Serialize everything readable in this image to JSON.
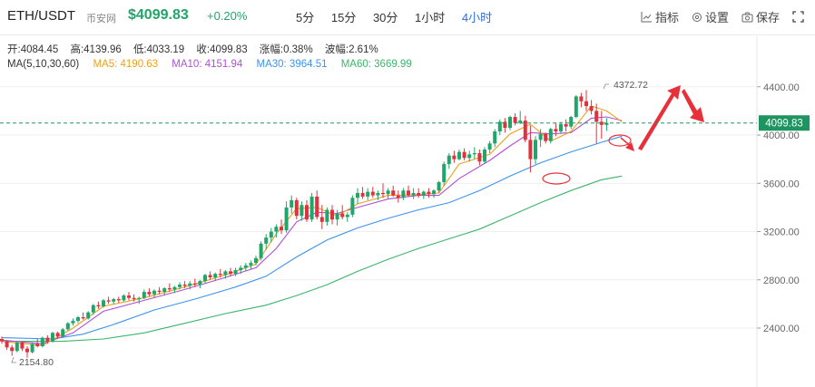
{
  "header": {
    "pair": "ETH/USDT",
    "exchange": "币安网",
    "price": "$4099.83",
    "change": "+0.20%",
    "intervals": [
      "5分",
      "15分",
      "30分",
      "1小时",
      "4小时"
    ],
    "active_interval": "4小时",
    "tools": {
      "indicators": "指标",
      "settings": "设置",
      "save": "保存"
    }
  },
  "ohlc": {
    "open": "开:4084.45",
    "high": "高:4139.96",
    "low": "低:4033.19",
    "close": "收:4099.83",
    "change": "涨幅:0.38%",
    "amplitude": "波幅:2.61%"
  },
  "ma": {
    "label": "MA(5,10,30,60)",
    "ma5": "MA5: 4190.63",
    "ma10": "MA10: 4151.94",
    "ma30": "MA30: 3964.51",
    "ma60": "MA60: 3669.99"
  },
  "colors": {
    "up": "#20a56a",
    "down": "#e0323d",
    "ma5": "#f0a01e",
    "ma10": "#b04fd6",
    "ma30": "#3b93f0",
    "ma60": "#3bb56a",
    "annotation": "#e8303a",
    "price_line": "#1e9560"
  },
  "chart_data": {
    "type": "candlestick",
    "y_ticks": [
      "4400.00",
      "4000.00",
      "3600.00",
      "3200.00",
      "2800.00",
      "2400.00"
    ],
    "ylim": [
      2100,
      4600
    ],
    "current_price": 4099.83,
    "current_price_label": "4099.83",
    "high_label": "4372.72",
    "low_label": "2154.80",
    "candles": [
      [
        2310,
        2330,
        2270,
        2290
      ],
      [
        2290,
        2300,
        2220,
        2240
      ],
      [
        2240,
        2260,
        2170,
        2210
      ],
      [
        2210,
        2290,
        2200,
        2280
      ],
      [
        2280,
        2290,
        2210,
        2230
      ],
      [
        2230,
        2250,
        2155,
        2200
      ],
      [
        2200,
        2280,
        2190,
        2270
      ],
      [
        2270,
        2310,
        2240,
        2250
      ],
      [
        2250,
        2330,
        2240,
        2320
      ],
      [
        2320,
        2340,
        2270,
        2290
      ],
      [
        2290,
        2370,
        2280,
        2360
      ],
      [
        2360,
        2370,
        2310,
        2330
      ],
      [
        2330,
        2400,
        2320,
        2390
      ],
      [
        2390,
        2450,
        2380,
        2440
      ],
      [
        2440,
        2480,
        2420,
        2460
      ],
      [
        2460,
        2500,
        2440,
        2490
      ],
      [
        2490,
        2530,
        2470,
        2480
      ],
      [
        2480,
        2540,
        2470,
        2530
      ],
      [
        2530,
        2600,
        2510,
        2590
      ],
      [
        2590,
        2620,
        2560,
        2580
      ],
      [
        2580,
        2640,
        2570,
        2630
      ],
      [
        2630,
        2660,
        2600,
        2620
      ],
      [
        2620,
        2650,
        2600,
        2640
      ],
      [
        2640,
        2660,
        2610,
        2630
      ],
      [
        2630,
        2680,
        2620,
        2670
      ],
      [
        2670,
        2700,
        2630,
        2650
      ],
      [
        2650,
        2680,
        2620,
        2640
      ],
      [
        2640,
        2660,
        2600,
        2650
      ],
      [
        2650,
        2720,
        2640,
        2700
      ],
      [
        2700,
        2730,
        2660,
        2680
      ],
      [
        2680,
        2720,
        2650,
        2710
      ],
      [
        2710,
        2740,
        2680,
        2700
      ],
      [
        2700,
        2740,
        2670,
        2730
      ],
      [
        2730,
        2770,
        2700,
        2720
      ],
      [
        2720,
        2750,
        2690,
        2740
      ],
      [
        2740,
        2780,
        2720,
        2760
      ],
      [
        2760,
        2790,
        2730,
        2750
      ],
      [
        2750,
        2790,
        2720,
        2770
      ],
      [
        2770,
        2810,
        2740,
        2760
      ],
      [
        2760,
        2800,
        2730,
        2790
      ],
      [
        2790,
        2850,
        2770,
        2840
      ],
      [
        2840,
        2870,
        2800,
        2820
      ],
      [
        2820,
        2860,
        2790,
        2850
      ],
      [
        2850,
        2890,
        2820,
        2840
      ],
      [
        2840,
        2880,
        2810,
        2870
      ],
      [
        2870,
        2900,
        2830,
        2850
      ],
      [
        2850,
        2900,
        2830,
        2880
      ],
      [
        2880,
        2920,
        2850,
        2900
      ],
      [
        2900,
        2940,
        2870,
        2920
      ],
      [
        2920,
        2960,
        2890,
        2940
      ],
      [
        2940,
        3000,
        2920,
        2980
      ],
      [
        2980,
        3120,
        2960,
        3100
      ],
      [
        3100,
        3180,
        3050,
        3150
      ],
      [
        3150,
        3230,
        3110,
        3200
      ],
      [
        3200,
        3260,
        3150,
        3240
      ],
      [
        3240,
        3300,
        3180,
        3210
      ],
      [
        3210,
        3450,
        3190,
        3400
      ],
      [
        3400,
        3500,
        3350,
        3460
      ],
      [
        3460,
        3480,
        3300,
        3330
      ],
      [
        3330,
        3450,
        3290,
        3420
      ],
      [
        3420,
        3460,
        3280,
        3300
      ],
      [
        3300,
        3520,
        3280,
        3490
      ],
      [
        3490,
        3540,
        3300,
        3320
      ],
      [
        3320,
        3420,
        3220,
        3280
      ],
      [
        3280,
        3400,
        3250,
        3380
      ],
      [
        3380,
        3420,
        3260,
        3300
      ],
      [
        3300,
        3380,
        3250,
        3350
      ],
      [
        3350,
        3420,
        3300,
        3320
      ],
      [
        3320,
        3360,
        3280,
        3340
      ],
      [
        3340,
        3500,
        3320,
        3480
      ],
      [
        3480,
        3560,
        3430,
        3520
      ],
      [
        3520,
        3570,
        3470,
        3490
      ],
      [
        3490,
        3560,
        3460,
        3530
      ],
      [
        3530,
        3570,
        3480,
        3500
      ],
      [
        3500,
        3540,
        3460,
        3520
      ],
      [
        3520,
        3600,
        3480,
        3510
      ],
      [
        3510,
        3560,
        3470,
        3540
      ],
      [
        3540,
        3580,
        3490,
        3500
      ],
      [
        3500,
        3540,
        3440,
        3480
      ],
      [
        3480,
        3560,
        3460,
        3540
      ],
      [
        3540,
        3580,
        3490,
        3500
      ],
      [
        3500,
        3560,
        3470,
        3520
      ],
      [
        3520,
        3560,
        3480,
        3500
      ],
      [
        3500,
        3540,
        3470,
        3530
      ],
      [
        3530,
        3560,
        3480,
        3510
      ],
      [
        3510,
        3550,
        3480,
        3540
      ],
      [
        3540,
        3620,
        3520,
        3610
      ],
      [
        3610,
        3780,
        3580,
        3760
      ],
      [
        3760,
        3850,
        3720,
        3830
      ],
      [
        3830,
        3870,
        3770,
        3800
      ],
      [
        3800,
        3880,
        3790,
        3860
      ],
      [
        3860,
        3890,
        3790,
        3810
      ],
      [
        3810,
        3870,
        3780,
        3840
      ],
      [
        3840,
        3900,
        3800,
        3850
      ],
      [
        3850,
        3880,
        3750,
        3780
      ],
      [
        3780,
        3900,
        3760,
        3880
      ],
      [
        3880,
        3950,
        3850,
        3930
      ],
      [
        3930,
        4050,
        3900,
        4030
      ],
      [
        4030,
        4130,
        4000,
        4110
      ],
      [
        4110,
        4140,
        4020,
        4060
      ],
      [
        4060,
        4160,
        4040,
        4150
      ],
      [
        4150,
        4180,
        4080,
        4100
      ],
      [
        4100,
        4200,
        4090,
        4120
      ],
      [
        4120,
        4160,
        3940,
        3960
      ],
      [
        3960,
        4080,
        3690,
        3800
      ],
      [
        3800,
        3990,
        3760,
        3960
      ],
      [
        3960,
        4050,
        3900,
        4010
      ],
      [
        4010,
        4020,
        3930,
        3950
      ],
      [
        3950,
        4060,
        3930,
        4050
      ],
      [
        4050,
        4100,
        3990,
        4030
      ],
      [
        4030,
        4110,
        4010,
        4090
      ],
      [
        4090,
        4130,
        4030,
        4070
      ],
      [
        4070,
        4160,
        4050,
        4150
      ],
      [
        4150,
        4330,
        4140,
        4320
      ],
      [
        4320,
        4350,
        4230,
        4280
      ],
      [
        4280,
        4373,
        4200,
        4240
      ],
      [
        4240,
        4290,
        4170,
        4200
      ],
      [
        4200,
        4260,
        3930,
        4110
      ],
      [
        4110,
        4200,
        3970,
        4084
      ],
      [
        4084,
        4140,
        4033,
        4100
      ]
    ],
    "ma5": [
      [
        0,
        2290
      ],
      [
        8,
        2255
      ],
      [
        14,
        2400
      ],
      [
        20,
        2580
      ],
      [
        28,
        2650
      ],
      [
        36,
        2740
      ],
      [
        44,
        2840
      ],
      [
        50,
        2930
      ],
      [
        54,
        3180
      ],
      [
        58,
        3390
      ],
      [
        62,
        3400
      ],
      [
        66,
        3330
      ],
      [
        70,
        3430
      ],
      [
        76,
        3500
      ],
      [
        82,
        3505
      ],
      [
        86,
        3520
      ],
      [
        90,
        3760
      ],
      [
        96,
        3840
      ],
      [
        100,
        4010
      ],
      [
        104,
        4090
      ],
      [
        108,
        3950
      ],
      [
        112,
        4030
      ],
      [
        116,
        4240
      ],
      [
        119,
        4200
      ],
      [
        122,
        4110
      ]
    ],
    "ma10": [
      [
        0,
        2300
      ],
      [
        8,
        2270
      ],
      [
        14,
        2360
      ],
      [
        20,
        2540
      ],
      [
        28,
        2630
      ],
      [
        36,
        2720
      ],
      [
        44,
        2820
      ],
      [
        50,
        2900
      ],
      [
        54,
        3060
      ],
      [
        58,
        3280
      ],
      [
        62,
        3360
      ],
      [
        66,
        3350
      ],
      [
        70,
        3400
      ],
      [
        76,
        3470
      ],
      [
        82,
        3500
      ],
      [
        86,
        3500
      ],
      [
        90,
        3640
      ],
      [
        96,
        3790
      ],
      [
        100,
        3910
      ],
      [
        104,
        4020
      ],
      [
        108,
        4010
      ],
      [
        112,
        4020
      ],
      [
        116,
        4140
      ],
      [
        119,
        4150
      ],
      [
        122,
        4120
      ]
    ],
    "ma30": [
      [
        0,
        2320
      ],
      [
        10,
        2310
      ],
      [
        16,
        2350
      ],
      [
        22,
        2430
      ],
      [
        30,
        2550
      ],
      [
        38,
        2640
      ],
      [
        46,
        2740
      ],
      [
        52,
        2830
      ],
      [
        58,
        2990
      ],
      [
        64,
        3130
      ],
      [
        70,
        3230
      ],
      [
        76,
        3310
      ],
      [
        82,
        3380
      ],
      [
        88,
        3440
      ],
      [
        94,
        3540
      ],
      [
        100,
        3660
      ],
      [
        106,
        3770
      ],
      [
        112,
        3860
      ],
      [
        118,
        3940
      ],
      [
        122,
        3990
      ]
    ],
    "ma60": [
      [
        0,
        2290
      ],
      [
        12,
        2290
      ],
      [
        20,
        2310
      ],
      [
        28,
        2360
      ],
      [
        36,
        2440
      ],
      [
        44,
        2520
      ],
      [
        52,
        2590
      ],
      [
        58,
        2670
      ],
      [
        64,
        2760
      ],
      [
        70,
        2870
      ],
      [
        76,
        2970
      ],
      [
        82,
        3060
      ],
      [
        88,
        3140
      ],
      [
        94,
        3220
      ],
      [
        100,
        3330
      ],
      [
        106,
        3440
      ],
      [
        112,
        3540
      ],
      [
        118,
        3630
      ],
      [
        122,
        3660
      ]
    ]
  }
}
